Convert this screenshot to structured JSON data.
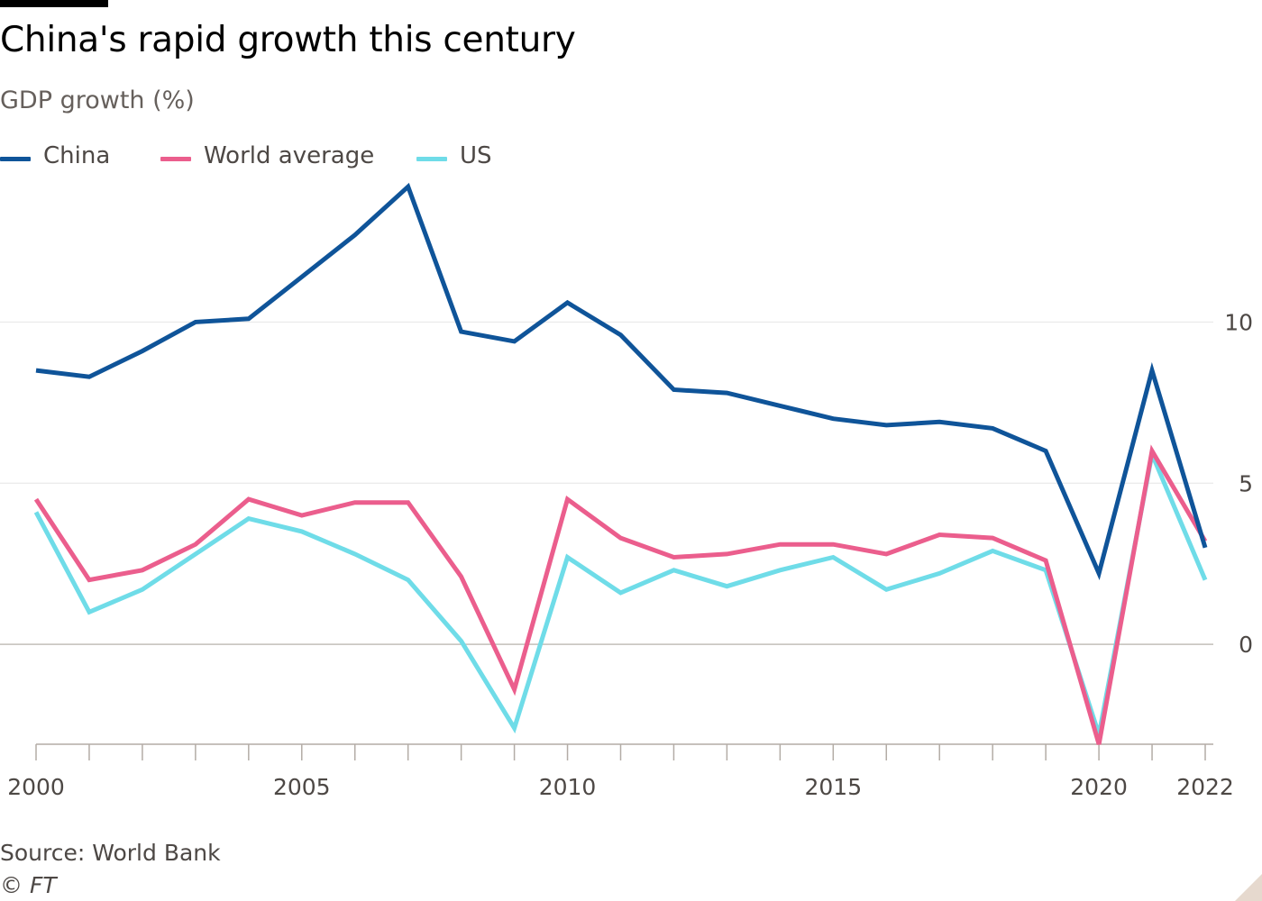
{
  "header": {
    "title": "China's rapid growth this century",
    "subtitle": "GDP growth (%)"
  },
  "footer": {
    "source": "Source: World Bank",
    "copyright": "© FT"
  },
  "colors": {
    "china": "#0f5499",
    "world": "#eb5e8d",
    "us": "#6fdce8",
    "grid": "#e6e6e6",
    "axis": "#b3aca6",
    "tick_text": "#4d4845"
  },
  "chart_data": {
    "type": "line",
    "title": "China's rapid growth this century",
    "subtitle": "GDP growth (%)",
    "x": [
      2000,
      2001,
      2002,
      2003,
      2004,
      2005,
      2006,
      2007,
      2008,
      2009,
      2010,
      2011,
      2012,
      2013,
      2014,
      2015,
      2016,
      2017,
      2018,
      2019,
      2020,
      2021,
      2022
    ],
    "series": [
      {
        "name": "China",
        "color": "#0f5499",
        "values": [
          8.5,
          8.3,
          9.1,
          10.0,
          10.1,
          11.4,
          12.7,
          14.2,
          9.7,
          9.4,
          10.6,
          9.6,
          7.9,
          7.8,
          7.4,
          7.0,
          6.8,
          6.9,
          6.7,
          6.0,
          2.2,
          8.5,
          3.0
        ]
      },
      {
        "name": "World average",
        "color": "#eb5e8d",
        "values": [
          4.5,
          2.0,
          2.3,
          3.1,
          4.5,
          4.0,
          4.4,
          4.4,
          2.1,
          -1.4,
          4.5,
          3.3,
          2.7,
          2.8,
          3.1,
          3.1,
          2.8,
          3.4,
          3.3,
          2.6,
          -3.1,
          6.0,
          3.2
        ]
      },
      {
        "name": "US",
        "color": "#6fdce8",
        "values": [
          4.1,
          1.0,
          1.7,
          2.8,
          3.9,
          3.5,
          2.8,
          2.0,
          0.1,
          -2.6,
          2.7,
          1.6,
          2.3,
          1.8,
          2.3,
          2.7,
          1.7,
          2.2,
          2.9,
          2.3,
          -2.8,
          5.9,
          2.0
        ]
      }
    ],
    "ylim": [
      -3.1,
      14.4
    ],
    "xlim": [
      2000,
      2022
    ],
    "y_ticks": [
      0,
      5,
      10
    ],
    "y_tick_labels": [
      "0",
      "5",
      "10"
    ],
    "x_tick_labels": [
      {
        "year": 2000,
        "label": "2000"
      },
      {
        "year": 2005,
        "label": "2005"
      },
      {
        "year": 2010,
        "label": "2010"
      },
      {
        "year": 2015,
        "label": "2015"
      },
      {
        "year": 2020,
        "label": "2020"
      },
      {
        "year": 2022,
        "label": "2022"
      }
    ],
    "legend_position": "top-left",
    "grid": true
  }
}
